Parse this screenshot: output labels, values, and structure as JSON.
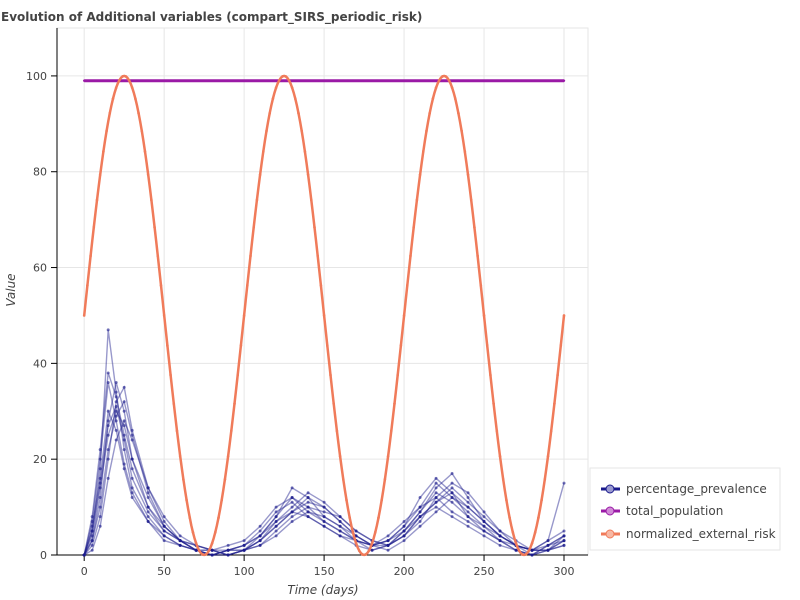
{
  "chart_data": {
    "type": "line",
    "title": "Evolution of Additional variables (compart_SIRS_periodic_risk)",
    "xlabel": "Time (days)",
    "ylabel": "Value",
    "xlim": [
      -17,
      315
    ],
    "ylim": [
      0,
      110
    ],
    "xticks": [
      0,
      50,
      100,
      150,
      200,
      250,
      300
    ],
    "yticks": [
      0,
      20,
      40,
      60,
      80,
      100
    ],
    "grid": true,
    "legend_position": "bottom-right",
    "colors": {
      "percentage_prevalence": "#1a1a8c",
      "total_population": "#9a1aa6",
      "normalized_external_risk": "#f07b5a"
    },
    "series": [
      {
        "name": "percentage_prevalence",
        "note_runs": 10
      },
      {
        "name": "total_population"
      },
      {
        "name": "normalized_external_risk"
      }
    ],
    "normalized_external_risk": {
      "mean": 50,
      "amplitude": 50,
      "period_days": 100,
      "peak_days": [
        25,
        125,
        225
      ]
    },
    "total_population": {
      "value": 99
    },
    "prevalence_runs": [
      {
        "x": [
          0,
          5,
          10,
          15,
          20,
          25,
          30,
          40,
          50,
          60,
          70,
          80,
          90,
          100,
          110,
          120,
          130,
          140,
          150,
          160,
          170,
          180,
          190,
          200,
          210,
          220,
          230,
          240,
          250,
          260,
          270,
          280,
          290,
          300
        ],
        "y": [
          0,
          8,
          22,
          38,
          33,
          25,
          18,
          10,
          6,
          3,
          2,
          1,
          2,
          3,
          6,
          10,
          12,
          9,
          7,
          5,
          3,
          2,
          4,
          7,
          10,
          12,
          9,
          7,
          5,
          3,
          2,
          1,
          3,
          5
        ]
      },
      {
        "x": [
          0,
          5,
          10,
          15,
          20,
          25,
          30,
          40,
          50,
          60,
          70,
          80,
          90,
          100,
          110,
          120,
          130,
          140,
          150,
          160,
          170,
          180,
          190,
          200,
          210,
          220,
          230,
          240,
          250,
          260,
          270,
          280,
          290,
          300
        ],
        "y": [
          0,
          5,
          18,
          47,
          34,
          22,
          14,
          8,
          4,
          2,
          1,
          1,
          1,
          2,
          4,
          8,
          14,
          12,
          8,
          6,
          3,
          2,
          3,
          6,
          12,
          16,
          13,
          8,
          5,
          3,
          1,
          0,
          2,
          4
        ]
      },
      {
        "x": [
          0,
          5,
          10,
          15,
          20,
          25,
          30,
          40,
          50,
          60,
          70,
          80,
          90,
          100,
          110,
          120,
          130,
          140,
          150,
          160,
          170,
          180,
          190,
          200,
          210,
          220,
          230,
          240,
          250,
          260,
          270,
          280,
          290,
          300
        ],
        "y": [
          0,
          3,
          12,
          28,
          36,
          30,
          20,
          10,
          5,
          3,
          1,
          0,
          1,
          1,
          3,
          6,
          9,
          11,
          10,
          7,
          4,
          2,
          3,
          5,
          9,
          14,
          17,
          12,
          7,
          4,
          2,
          1,
          1,
          3
        ]
      },
      {
        "x": [
          0,
          5,
          10,
          15,
          20,
          25,
          30,
          40,
          50,
          60,
          70,
          80,
          90,
          100,
          110,
          120,
          130,
          140,
          150,
          160,
          170,
          180,
          190,
          200,
          210,
          220,
          230,
          240,
          250,
          260,
          270,
          280,
          290,
          300
        ],
        "y": [
          0,
          2,
          8,
          20,
          32,
          35,
          26,
          14,
          7,
          3,
          2,
          1,
          0,
          1,
          2,
          5,
          8,
          10,
          9,
          8,
          5,
          3,
          2,
          4,
          8,
          11,
          14,
          11,
          8,
          5,
          3,
          1,
          2,
          4
        ]
      },
      {
        "x": [
          0,
          5,
          10,
          15,
          20,
          25,
          30,
          40,
          50,
          60,
          70,
          80,
          90,
          100,
          110,
          120,
          130,
          140,
          150,
          160,
          170,
          180,
          190,
          200,
          210,
          220,
          230,
          240,
          250,
          260,
          270,
          280,
          290,
          300
        ],
        "y": [
          0,
          6,
          16,
          30,
          26,
          18,
          12,
          7,
          4,
          2,
          1,
          0,
          1,
          2,
          5,
          9,
          11,
          8,
          6,
          4,
          2,
          1,
          2,
          5,
          8,
          10,
          8,
          6,
          4,
          2,
          1,
          0,
          1,
          2
        ]
      },
      {
        "x": [
          0,
          5,
          10,
          15,
          20,
          25,
          30,
          40,
          50,
          60,
          70,
          80,
          90,
          100,
          110,
          120,
          130,
          140,
          150,
          160,
          170,
          180,
          190,
          200,
          210,
          220,
          230,
          240,
          250,
          260,
          270,
          280,
          290,
          300
        ],
        "y": [
          0,
          4,
          14,
          25,
          30,
          27,
          20,
          12,
          6,
          3,
          1,
          0,
          0,
          1,
          3,
          7,
          10,
          13,
          11,
          8,
          5,
          3,
          2,
          4,
          7,
          12,
          15,
          13,
          9,
          5,
          2,
          1,
          1,
          2
        ]
      },
      {
        "x": [
          0,
          5,
          10,
          15,
          20,
          25,
          30,
          40,
          50,
          60,
          70,
          80,
          90,
          100,
          110,
          120,
          130,
          140,
          150,
          160,
          170,
          180,
          190,
          200,
          210,
          220,
          230,
          240,
          250,
          260,
          270,
          280,
          290,
          300
        ],
        "y": [
          0,
          1,
          6,
          16,
          24,
          28,
          24,
          14,
          8,
          4,
          2,
          1,
          0,
          1,
          2,
          4,
          7,
          9,
          8,
          6,
          4,
          2,
          1,
          3,
          6,
          9,
          12,
          10,
          7,
          4,
          2,
          0,
          1,
          3
        ]
      },
      {
        "x": [
          0,
          5,
          10,
          15,
          20,
          25,
          30,
          40,
          50,
          60,
          70,
          80,
          90,
          100,
          110,
          120,
          130,
          140,
          150,
          160,
          170,
          180,
          190,
          200,
          210,
          220,
          230,
          240,
          250,
          260,
          270,
          280,
          290,
          300
        ],
        "y": [
          0,
          7,
          20,
          36,
          28,
          19,
          13,
          7,
          3,
          2,
          1,
          0,
          1,
          1,
          4,
          8,
          12,
          10,
          7,
          5,
          3,
          1,
          2,
          5,
          9,
          13,
          11,
          8,
          6,
          3,
          1,
          0,
          2,
          3
        ]
      },
      {
        "x": [
          0,
          5,
          10,
          15,
          20,
          25,
          30,
          40,
          50,
          60,
          70,
          80,
          90,
          100,
          110,
          120,
          130,
          140,
          150,
          160,
          170,
          180,
          190,
          200,
          210,
          220,
          230,
          240,
          250,
          260,
          270,
          280,
          290,
          300
        ],
        "y": [
          0,
          3,
          10,
          22,
          29,
          32,
          25,
          13,
          6,
          3,
          1,
          1,
          0,
          1,
          3,
          6,
          9,
          12,
          10,
          7,
          4,
          2,
          2,
          4,
          8,
          11,
          13,
          10,
          7,
          4,
          2,
          1,
          1,
          4
        ]
      },
      {
        "x": [
          0,
          5,
          10,
          15,
          20,
          25,
          30,
          40,
          50,
          60,
          70,
          80,
          90,
          100,
          110,
          120,
          130,
          140,
          150,
          160,
          170,
          180,
          190,
          200,
          210,
          220,
          230,
          240,
          250,
          260,
          270,
          280,
          290,
          300
        ],
        "y": [
          0,
          5,
          15,
          27,
          31,
          24,
          16,
          9,
          5,
          3,
          1,
          0,
          1,
          2,
          4,
          7,
          9,
          8,
          6,
          4,
          3,
          2,
          3,
          6,
          10,
          15,
          12,
          9,
          6,
          4,
          2,
          1,
          3,
          15
        ]
      }
    ]
  }
}
